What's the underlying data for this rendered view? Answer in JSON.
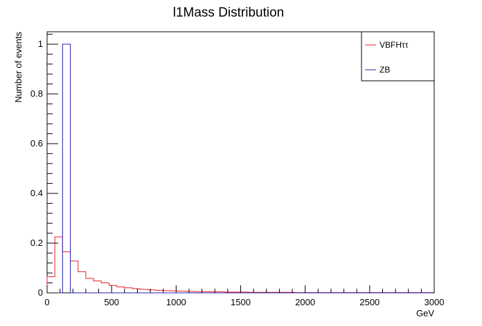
{
  "chart_data": {
    "type": "histogram",
    "title": "l1Mass Distribution",
    "xlabel": "GeV",
    "ylabel": "Number of events",
    "xlim": [
      0,
      3000
    ],
    "ylim": [
      0,
      1.05
    ],
    "bin_width": 60,
    "x_ticks": [
      0,
      500,
      1000,
      1500,
      2000,
      2500,
      3000
    ],
    "x_tick_labels": [
      "0",
      "500",
      "1000",
      "1500",
      "2000",
      "2500",
      "3000"
    ],
    "y_ticks": [
      0,
      0.2,
      0.4,
      0.6,
      0.8,
      1
    ],
    "y_tick_labels": [
      "0",
      "0.2",
      "0.4",
      "0.6",
      "0.8",
      "1"
    ],
    "grid": false,
    "legend_position": "top-right",
    "series": [
      {
        "name": "VBFHττ",
        "color": "#e8202a",
        "values": [
          0.065,
          0.225,
          0.165,
          0.128,
          0.085,
          0.058,
          0.048,
          0.04,
          0.03,
          0.024,
          0.02,
          0.017,
          0.014,
          0.012,
          0.01,
          0.009,
          0.008,
          0.007,
          0.006,
          0.005,
          0.005,
          0.004,
          0.004,
          0.003,
          0.003,
          0.003,
          0.002,
          0.002,
          0.002,
          0.002,
          0.002,
          0.002,
          0.001,
          0.001,
          0.001,
          0.001,
          0.001,
          0.001,
          0.001,
          0.001,
          0.001,
          0.001,
          0.001,
          0.001,
          0.001,
          0.001,
          0.001,
          0.001,
          0.001,
          0.001
        ]
      },
      {
        "name": "ZB",
        "color": "#2020b0",
        "values": [
          0,
          0,
          1.0,
          0,
          0,
          0,
          0,
          0,
          0,
          0,
          0,
          0,
          0,
          0,
          0,
          0,
          0,
          0,
          0,
          0,
          0,
          0,
          0,
          0,
          0,
          0,
          0,
          0,
          0,
          0,
          0,
          0,
          0,
          0,
          0,
          0,
          0,
          0,
          0,
          0,
          0,
          0,
          0,
          0,
          0,
          0,
          0,
          0,
          0,
          0
        ]
      }
    ]
  }
}
